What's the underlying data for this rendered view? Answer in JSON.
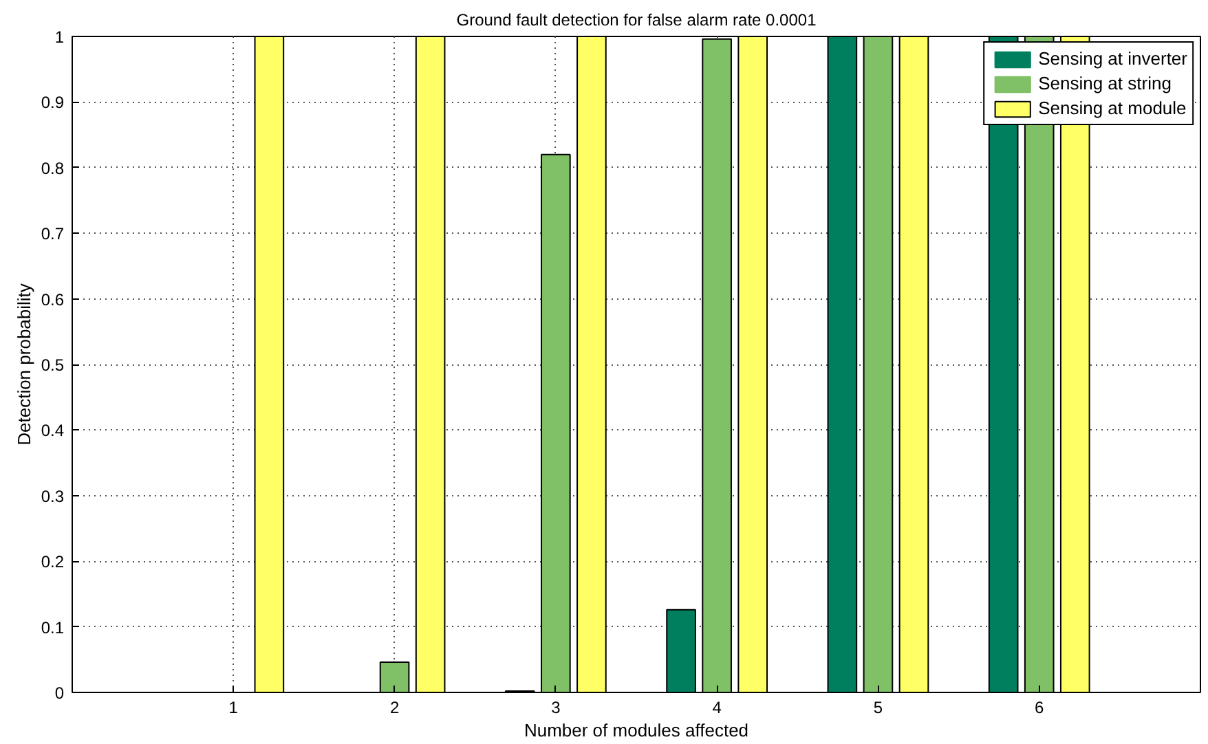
{
  "chart_data": {
    "type": "bar",
    "title": "Ground fault detection for false alarm rate 0.0001",
    "xlabel": "Number of modules affected",
    "ylabel": "Detection probability",
    "x": [
      1,
      2,
      3,
      4,
      5,
      6
    ],
    "series": [
      {
        "name": "Sensing at inverter",
        "color": "#007f5f",
        "values": [
          0,
          0,
          0.002,
          0.126,
          1,
          1
        ]
      },
      {
        "name": "Sensing at string",
        "color": "#80c066",
        "values": [
          0,
          0.046,
          0.82,
          0.996,
          1,
          1
        ]
      },
      {
        "name": "Sensing at module",
        "color": "#ffff66",
        "values": [
          1,
          1,
          1,
          1,
          1,
          1
        ]
      }
    ],
    "xlim": [
      0,
      7
    ],
    "xticks": [
      1,
      2,
      3,
      4,
      5,
      6
    ],
    "ylim": [
      0,
      1
    ],
    "yticks": [
      0,
      0.1,
      0.2,
      0.3,
      0.4,
      0.5,
      0.6,
      0.7,
      0.8,
      0.9,
      1
    ],
    "grid": true,
    "legend": "top right"
  }
}
